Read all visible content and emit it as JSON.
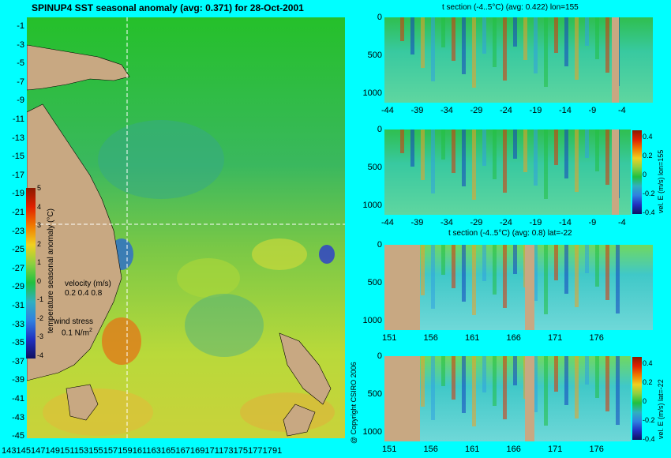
{
  "title": "SPINUP4 SST seasonal anomaly (avg: 0.371) for 28-Oct-2001",
  "map": {
    "lat_ticks": [
      "-1",
      "-3",
      "-5",
      "-7",
      "-9",
      "-11",
      "-13",
      "-15",
      "-17",
      "-19",
      "-21",
      "-23",
      "-25",
      "-27",
      "-29",
      "-31",
      "-33",
      "-35",
      "-37",
      "-39",
      "-41",
      "-43",
      "-45"
    ],
    "lon_ticks_text": "1431451471491511531551571591611631651671691711731751771791",
    "colorbar": {
      "ticks": [
        "5",
        "4",
        "3",
        "2",
        "1",
        "0",
        "-1",
        "-2",
        "-3",
        "-4"
      ],
      "label": "temperature seasonal anomaly (°C)"
    },
    "velocity_label": "velocity (m/s)",
    "velocity_scale": "0.2 0.4 0.8",
    "wind_label": "wind stress",
    "wind_scale": "0.1 N/m",
    "wind_sup": "2",
    "copyright": "@ Copyright CSIRO 2006"
  },
  "sections": [
    {
      "title": "t section (-4..5°C) (avg: 0.422) lon=155",
      "y_ticks": [
        "0",
        "500",
        "1000"
      ],
      "x_ticks": [
        "-44",
        "-39",
        "-34",
        "-29",
        "-24",
        "-19",
        "-14",
        "-9",
        "-4"
      ]
    },
    {
      "title": "",
      "y_ticks": [
        "0",
        "500",
        "1000"
      ],
      "x_ticks": [
        "-44",
        "-39",
        "-34",
        "-29",
        "-24",
        "-19",
        "-14",
        "-9",
        "-4"
      ],
      "colorbar_ticks": [
        "0.4",
        "0.2",
        "0",
        "-0.2",
        "-0.4"
      ],
      "colorbar_label": "vel. E (m/s) lon=155"
    },
    {
      "title": "t section (-4..5°C) (avg: 0.8) lat=-22",
      "y_ticks": [
        "0",
        "500",
        "1000"
      ],
      "x_ticks": [
        "151",
        "156",
        "161",
        "166",
        "171",
        "176"
      ]
    },
    {
      "title": "",
      "y_ticks": [
        "0",
        "500",
        "1000"
      ],
      "x_ticks": [
        "151",
        "156",
        "161",
        "166",
        "171",
        "176"
      ],
      "colorbar_ticks": [
        "0.4",
        "0.2",
        "0",
        "-0.2",
        "-0.4"
      ],
      "colorbar_label": "vel. E (m/s) lat=-22"
    }
  ],
  "colors": {
    "background": "#00ffff",
    "land": "#c8a882",
    "crosshair": "#ffffff"
  }
}
